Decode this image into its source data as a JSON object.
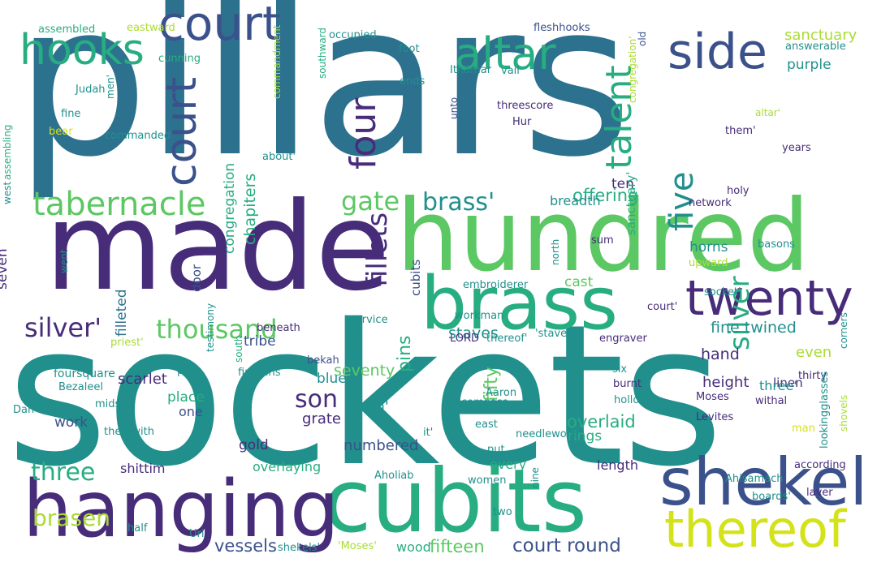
{
  "colors": {
    "purple": "#472c7a",
    "indigo": "#3b518b",
    "blue": "#2c718e",
    "teal": "#21908d",
    "seagreen": "#27ad81",
    "green": "#5cc863",
    "lime": "#aadc32",
    "yellow": "#d4e21a"
  },
  "words": {
    "sockets": "sockets",
    "pillars": "pillars",
    "made": "made",
    "hundred": "hundred",
    "cubits_big": "cubits",
    "hanging": "hanging",
    "brass_big": "brass",
    "shekel": "shekel",
    "thereof_big": "thereof",
    "twenty": "twenty",
    "court_big": "court",
    "hooks": "hooks",
    "altar": "altar",
    "side": "side",
    "tabernacle": "tabernacle",
    "talent": "talent",
    "four": "four",
    "five": "five",
    "thousand": "thousand",
    "silver_q": "silver'",
    "brass_q": "brass'",
    "gate": "gate",
    "fillets": "fillets",
    "silver": "silver",
    "son": "son",
    "three": "three",
    "brasen": "brasen",
    "offering": "offering",
    "overlaid": "overlaid",
    "court_round": "court round",
    "fifteen": "fifteen",
    "vessels": "vessels",
    "fifty": "fifty",
    "seventy": "seventy",
    "sanctuary": "sanctuary",
    "chapiters": "chapiters",
    "staves": "staves",
    "linen_q": "linen'",
    "pins": "pins",
    "hand": "hand",
    "numbered": "numbered",
    "fine_twined": "fine twined",
    "scarlet": "scarlet",
    "congregation": "congregation",
    "filleted": "filleted",
    "purple": "purple",
    "height": "height",
    "even": "even",
    "linen": "linen",
    "three_q": "three'",
    "horns": "horns",
    "ten": "ten",
    "breadth": "breadth",
    "blue": "blue",
    "grate": "grate",
    "cast": "cast",
    "rings": "rings",
    "seven": "seven",
    "place": "place",
    "one": "one",
    "work": "work",
    "gold": "gold",
    "overlaying": "overlaying",
    "every": "every",
    "length": "length",
    "shittim": "shittim",
    "wood": "wood",
    "tribe": "tribe",
    "door": "door",
    "foursquare": "foursquare",
    "sanctuary_q": "sanctuary'",
    "cubits": "cubits",
    "eastward": "eastward",
    "assembled": "assembled",
    "cunning": "cunning",
    "occupied": "occupied",
    "foot": "foot",
    "fleshhooks": "fleshhooks",
    "old": "old",
    "sanctuary_small": "sanctuary",
    "answerable": "answerable",
    "ends": "ends",
    "ithamar": "Ithamar",
    "vail": "vail",
    "men_q": "men'",
    "commanded": "commanded",
    "commandment": "commandment",
    "southward": "southward",
    "threescore": "threescore",
    "hur": "Hur",
    "unto": "unto",
    "congregation_q": "congregation'",
    "altar_q": "altar'",
    "them_q": "them'",
    "years": "years",
    "about_q": "about'",
    "service": "service",
    "beneath": "beneath",
    "bekah": "bekah",
    "lord": "LORD",
    "thereof_q": "thereof'",
    "staves_q": "'staves'",
    "engraver": "engraver",
    "court_q": "court'",
    "socket_q": "socket'",
    "upward": "upward",
    "north": "north",
    "network": "network",
    "holy": "holy",
    "basons": "basons",
    "embroiderer": "embroiderer",
    "workman": "workman",
    "west": "west",
    "assembling": "assembling",
    "bear": "bear",
    "fine": "fine",
    "judah": "Judah",
    "went": "went",
    "priest_q": "priest'",
    "testimony": "testimony",
    "bezaleel": "Bezaleel",
    "midst": "midst",
    "pots": "pots",
    "firepans": "firepans",
    "south": "south",
    "therewith": "therewith",
    "aaron": "Aaron",
    "compass": "compass",
    "six": "six",
    "burnt": "burnt",
    "hollow": "hollow",
    "thirty": "thirty",
    "moses": "Moses",
    "withal": "withal",
    "levites": "Levites",
    "corners": "corners",
    "shovels": "shovels",
    "lookingglasses": "lookingglasses",
    "dan": "Dan",
    "needlework": "needlework",
    "east": "east",
    "it_q": "it'",
    "put": "put",
    "aholiab": "Aholiab",
    "women": "women",
    "nine": "nine",
    "two": "two",
    "according": "according",
    "ahisamach": "Ahisamach",
    "laver": "laver",
    "uri": "Uri",
    "half": "half",
    "sum": "sum",
    "man": "man",
    "boards_q": "boards'",
    "shekels_q": "shekels'",
    "moses_q": "'Moses'"
  }
}
